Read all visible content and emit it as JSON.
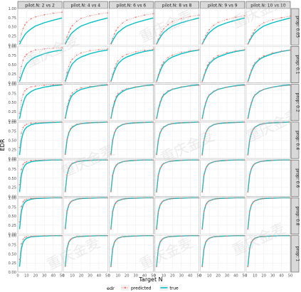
{
  "chart_data": {
    "type": "line",
    "title": "",
    "xlabel": "Target N",
    "ylabel": "EDR",
    "xlim": [
      0,
      50
    ],
    "ylim": [
      0,
      1
    ],
    "x_ticks": [
      0,
      10,
      20,
      30,
      40,
      50
    ],
    "y_ticks": [
      0.0,
      0.25,
      0.5,
      0.75,
      1.0
    ],
    "y_tick_labels": [
      "0.00",
      "0.25",
      "0.50",
      "0.75",
      "1.00"
    ],
    "grid": true,
    "legend": {
      "title": "edr",
      "position": "bottom",
      "entries": [
        {
          "name": "predicted",
          "color": "#F8766D",
          "style": "dotted"
        },
        {
          "name": "true",
          "color": "#00BFC4",
          "style": "solid"
        }
      ]
    },
    "columns": [
      "pilot.N: 2 vs 2",
      "pilot.N: 4 vs 4",
      "pilot.N: 6 vs 6",
      "pilot.N: 8 vs 8",
      "pilot.N: 9 vs 9",
      "pilot.N: 10 vs 10"
    ],
    "rows": [
      "prop: 0.05",
      "prop: 0.1",
      "prop: 0.2",
      "prop: 0.4",
      "prop: 0.6",
      "prop: 0.8",
      "prop: 1"
    ],
    "x": [
      2,
      4,
      6,
      8,
      10,
      15,
      20,
      30,
      40,
      50
    ],
    "true_by_row": [
      [
        0.02,
        0.12,
        0.2,
        0.28,
        0.34,
        0.44,
        0.52,
        0.61,
        0.68,
        0.74
      ],
      [
        0.03,
        0.18,
        0.32,
        0.43,
        0.52,
        0.64,
        0.71,
        0.8,
        0.86,
        0.9
      ],
      [
        0.05,
        0.3,
        0.48,
        0.62,
        0.7,
        0.8,
        0.86,
        0.92,
        0.96,
        0.98
      ],
      [
        0.1,
        0.5,
        0.7,
        0.8,
        0.86,
        0.93,
        0.96,
        0.98,
        0.99,
        1.0
      ],
      [
        0.12,
        0.58,
        0.76,
        0.85,
        0.9,
        0.95,
        0.97,
        0.99,
        1.0,
        1.0
      ],
      [
        0.14,
        0.62,
        0.8,
        0.88,
        0.92,
        0.96,
        0.98,
        0.99,
        1.0,
        1.0
      ],
      [
        0.15,
        0.64,
        0.82,
        0.89,
        0.93,
        0.97,
        0.98,
        0.99,
        1.0,
        1.0
      ]
    ],
    "predicted_by_panel": [
      [
        [
          0.1,
          0.3,
          0.45,
          0.55,
          0.62,
          0.72,
          0.77,
          0.83,
          0.87,
          0.9
        ],
        [
          0.05,
          0.22,
          0.35,
          0.45,
          0.53,
          0.65,
          0.73,
          0.8,
          0.85,
          0.88
        ],
        [
          0.04,
          0.18,
          0.3,
          0.4,
          0.48,
          0.6,
          0.68,
          0.76,
          0.82,
          0.86
        ],
        [
          0.03,
          0.16,
          0.27,
          0.36,
          0.44,
          0.56,
          0.64,
          0.72,
          0.78,
          0.82
        ],
        [
          0.03,
          0.15,
          0.26,
          0.34,
          0.42,
          0.54,
          0.62,
          0.7,
          0.76,
          0.8
        ],
        [
          0.03,
          0.15,
          0.25,
          0.33,
          0.41,
          0.53,
          0.61,
          0.69,
          0.75,
          0.79
        ]
      ],
      [
        [
          0.15,
          0.45,
          0.62,
          0.72,
          0.78,
          0.86,
          0.9,
          0.93,
          0.95,
          0.96
        ],
        [
          0.06,
          0.28,
          0.45,
          0.57,
          0.65,
          0.76,
          0.82,
          0.88,
          0.91,
          0.93
        ],
        [
          0.05,
          0.24,
          0.4,
          0.52,
          0.6,
          0.72,
          0.78,
          0.85,
          0.89,
          0.92
        ],
        [
          0.04,
          0.22,
          0.37,
          0.49,
          0.57,
          0.69,
          0.76,
          0.84,
          0.88,
          0.91
        ],
        [
          0.04,
          0.21,
          0.36,
          0.48,
          0.56,
          0.68,
          0.75,
          0.83,
          0.88,
          0.91
        ],
        [
          0.04,
          0.21,
          0.35,
          0.47,
          0.55,
          0.67,
          0.74,
          0.82,
          0.87,
          0.9
        ]
      ],
      [
        [
          0.2,
          0.55,
          0.72,
          0.82,
          0.87,
          0.93,
          0.95,
          0.97,
          0.98,
          0.99
        ],
        [
          0.08,
          0.38,
          0.56,
          0.68,
          0.76,
          0.85,
          0.9,
          0.94,
          0.96,
          0.98
        ],
        [
          0.07,
          0.35,
          0.53,
          0.66,
          0.74,
          0.83,
          0.88,
          0.93,
          0.96,
          0.97
        ],
        [
          0.06,
          0.33,
          0.51,
          0.64,
          0.72,
          0.82,
          0.87,
          0.93,
          0.95,
          0.97
        ],
        [
          0.06,
          0.32,
          0.5,
          0.63,
          0.71,
          0.81,
          0.87,
          0.92,
          0.95,
          0.97
        ],
        [
          0.06,
          0.32,
          0.5,
          0.63,
          0.71,
          0.81,
          0.86,
          0.92,
          0.95,
          0.97
        ]
      ],
      [
        [
          0.3,
          0.7,
          0.85,
          0.91,
          0.94,
          0.97,
          0.98,
          0.99,
          1.0,
          1.0
        ],
        [
          0.12,
          0.53,
          0.72,
          0.82,
          0.88,
          0.94,
          0.96,
          0.98,
          0.99,
          1.0
        ],
        [
          0.11,
          0.52,
          0.71,
          0.81,
          0.87,
          0.93,
          0.96,
          0.98,
          0.99,
          1.0
        ],
        [
          0.11,
          0.51,
          0.71,
          0.81,
          0.87,
          0.93,
          0.96,
          0.98,
          0.99,
          1.0
        ],
        [
          0.1,
          0.51,
          0.7,
          0.8,
          0.86,
          0.93,
          0.96,
          0.98,
          0.99,
          1.0
        ],
        [
          0.1,
          0.5,
          0.7,
          0.8,
          0.86,
          0.93,
          0.96,
          0.98,
          0.99,
          1.0
        ]
      ],
      [
        [
          0.32,
          0.74,
          0.88,
          0.93,
          0.95,
          0.98,
          0.99,
          1.0,
          1.0,
          1.0
        ],
        [
          0.13,
          0.6,
          0.78,
          0.86,
          0.91,
          0.95,
          0.97,
          0.99,
          1.0,
          1.0
        ],
        [
          0.13,
          0.59,
          0.77,
          0.86,
          0.9,
          0.95,
          0.97,
          0.99,
          1.0,
          1.0
        ],
        [
          0.12,
          0.58,
          0.77,
          0.85,
          0.9,
          0.95,
          0.97,
          0.99,
          1.0,
          1.0
        ],
        [
          0.12,
          0.58,
          0.76,
          0.85,
          0.9,
          0.95,
          0.97,
          0.99,
          1.0,
          1.0
        ],
        [
          0.12,
          0.58,
          0.76,
          0.85,
          0.9,
          0.95,
          0.97,
          0.99,
          1.0,
          1.0
        ]
      ],
      [
        [
          0.34,
          0.76,
          0.89,
          0.94,
          0.96,
          0.98,
          0.99,
          1.0,
          1.0,
          1.0
        ],
        [
          0.15,
          0.64,
          0.81,
          0.88,
          0.92,
          0.96,
          0.98,
          0.99,
          1.0,
          1.0
        ],
        [
          0.14,
          0.63,
          0.8,
          0.88,
          0.92,
          0.96,
          0.98,
          0.99,
          1.0,
          1.0
        ],
        [
          0.14,
          0.62,
          0.8,
          0.88,
          0.92,
          0.96,
          0.98,
          0.99,
          1.0,
          1.0
        ],
        [
          0.14,
          0.62,
          0.8,
          0.88,
          0.92,
          0.96,
          0.98,
          0.99,
          1.0,
          1.0
        ],
        [
          0.14,
          0.62,
          0.8,
          0.88,
          0.92,
          0.96,
          0.98,
          0.99,
          1.0,
          1.0
        ]
      ],
      [
        [
          0.35,
          0.78,
          0.9,
          0.95,
          0.97,
          0.98,
          0.99,
          1.0,
          1.0,
          1.0
        ],
        [
          0.16,
          0.66,
          0.83,
          0.9,
          0.93,
          0.97,
          0.98,
          0.99,
          1.0,
          1.0
        ],
        [
          0.15,
          0.65,
          0.82,
          0.89,
          0.93,
          0.97,
          0.98,
          0.99,
          1.0,
          1.0
        ],
        [
          0.15,
          0.64,
          0.82,
          0.89,
          0.93,
          0.97,
          0.98,
          0.99,
          1.0,
          1.0
        ],
        [
          0.15,
          0.64,
          0.82,
          0.89,
          0.93,
          0.97,
          0.98,
          0.99,
          1.0,
          1.0
        ],
        [
          0.15,
          0.64,
          0.82,
          0.89,
          0.93,
          0.97,
          0.98,
          0.99,
          1.0,
          1.0
        ]
      ]
    ],
    "colors": {
      "predicted": "#F8766D",
      "true": "#00BFC4",
      "panel_bg": "#FFFFFF",
      "strip_bg": "#D9D9D9",
      "grid": "#EBEBEB",
      "border": "#333333"
    }
  },
  "watermark": "重庆金麦"
}
